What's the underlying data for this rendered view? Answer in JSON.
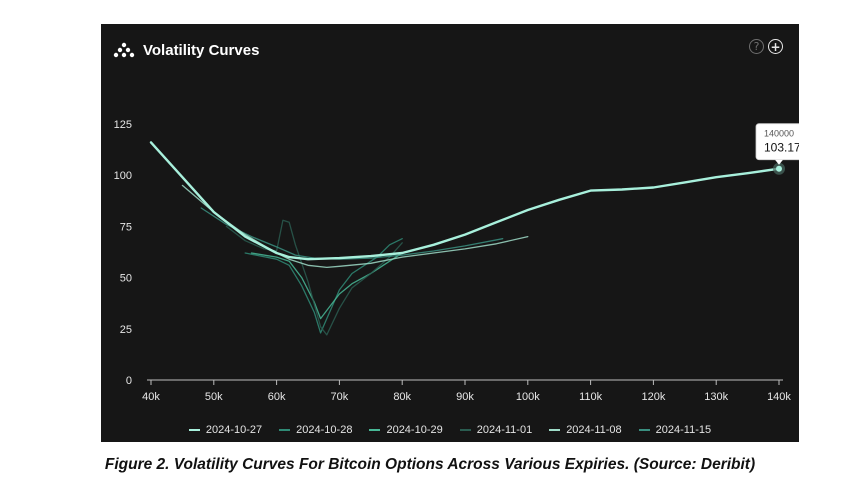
{
  "panel": {
    "title": "Volatility Curves",
    "logo_icon": "triangle-dots-logo-icon",
    "help_icon": "question-circle-icon",
    "help_glyph": "?",
    "add_icon": "plus-circle-icon",
    "add_glyph": "+",
    "background": "#161616"
  },
  "tooltip": {
    "label": "140000",
    "value": "103.17",
    "x": 140000,
    "y": 103.17
  },
  "caption": "Figure 2. Volatility Curves For Bitcoin Options Across Various Expiries. (Source: Deribit)",
  "chart_data": {
    "type": "line",
    "title": "Volatility Curves",
    "xlabel": "",
    "ylabel": "",
    "xlim": [
      40000,
      140000
    ],
    "ylim": [
      0,
      125
    ],
    "x_ticks": [
      40000,
      50000,
      60000,
      70000,
      80000,
      90000,
      100000,
      110000,
      120000,
      130000,
      140000
    ],
    "x_tick_labels": [
      "40k",
      "50k",
      "60k",
      "70k",
      "80k",
      "90k",
      "100k",
      "110k",
      "120k",
      "130k",
      "140k"
    ],
    "y_ticks": [
      0,
      25,
      50,
      75,
      100,
      125
    ],
    "y_tick_labels": [
      "0",
      "25",
      "50",
      "75",
      "100",
      "125"
    ],
    "grid": false,
    "legend": "bottom",
    "series": [
      {
        "name": "2024-10-27",
        "color": "#a8f0dc",
        "points": [
          [
            40000,
            116
          ],
          [
            45000,
            99
          ],
          [
            50000,
            82
          ],
          [
            55000,
            70
          ],
          [
            60000,
            62
          ],
          [
            62000,
            60
          ],
          [
            65000,
            59
          ],
          [
            70000,
            59.5
          ],
          [
            75000,
            60.5
          ],
          [
            80000,
            62
          ],
          [
            85000,
            66
          ],
          [
            90000,
            71
          ],
          [
            95000,
            77
          ],
          [
            100000,
            83
          ],
          [
            105000,
            88
          ],
          [
            110000,
            92.5
          ],
          [
            115000,
            93
          ],
          [
            120000,
            94
          ],
          [
            125000,
            96.5
          ],
          [
            130000,
            99
          ],
          [
            135000,
            101
          ],
          [
            140000,
            103.17
          ]
        ]
      },
      {
        "name": "2024-10-28",
        "color": "#2f8a75",
        "points": [
          [
            55000,
            62
          ],
          [
            60000,
            59
          ],
          [
            62000,
            56
          ],
          [
            64000,
            46
          ],
          [
            66000,
            33
          ],
          [
            67000,
            23
          ],
          [
            68000,
            30
          ],
          [
            70000,
            44
          ],
          [
            72000,
            52
          ],
          [
            74000,
            56
          ],
          [
            76000,
            60
          ],
          [
            78000,
            66
          ],
          [
            80000,
            69
          ]
        ]
      },
      {
        "name": "2024-10-29",
        "color": "#48b896",
        "points": [
          [
            56000,
            62
          ],
          [
            60000,
            60
          ],
          [
            62000,
            58
          ],
          [
            64000,
            50
          ],
          [
            66000,
            38
          ],
          [
            67000,
            30
          ],
          [
            68000,
            34
          ],
          [
            70000,
            42
          ],
          [
            72000,
            47
          ],
          [
            75000,
            52
          ],
          [
            78000,
            58
          ],
          [
            80000,
            62
          ]
        ]
      },
      {
        "name": "2024-11-01",
        "color": "#2a5c50",
        "points": [
          [
            52000,
            75
          ],
          [
            55000,
            68
          ],
          [
            58000,
            64
          ],
          [
            60000,
            63
          ],
          [
            61000,
            78
          ],
          [
            62000,
            77
          ],
          [
            63000,
            66
          ],
          [
            65000,
            48
          ],
          [
            67000,
            26
          ],
          [
            68000,
            22
          ],
          [
            70000,
            35
          ],
          [
            72000,
            45
          ],
          [
            75000,
            52
          ],
          [
            78000,
            60
          ],
          [
            80000,
            67
          ]
        ]
      },
      {
        "name": "2024-11-08",
        "color": "#9fdcc8",
        "points": [
          [
            45000,
            95
          ],
          [
            50000,
            82
          ],
          [
            55000,
            71
          ],
          [
            60000,
            62
          ],
          [
            62000,
            59
          ],
          [
            65000,
            56
          ],
          [
            68000,
            55
          ],
          [
            70000,
            55.5
          ],
          [
            75000,
            57
          ],
          [
            80000,
            60
          ],
          [
            85000,
            62
          ],
          [
            90000,
            64
          ],
          [
            95000,
            66.5
          ],
          [
            100000,
            70
          ]
        ]
      },
      {
        "name": "2024-11-15",
        "color": "#3a8f80",
        "points": [
          [
            48000,
            84
          ],
          [
            52000,
            76
          ],
          [
            56000,
            70
          ],
          [
            60000,
            65
          ],
          [
            63000,
            61
          ],
          [
            66000,
            59.5
          ],
          [
            70000,
            59
          ],
          [
            75000,
            59.5
          ],
          [
            80000,
            61
          ],
          [
            85000,
            63
          ],
          [
            90000,
            65.5
          ],
          [
            96000,
            69
          ]
        ]
      }
    ]
  }
}
